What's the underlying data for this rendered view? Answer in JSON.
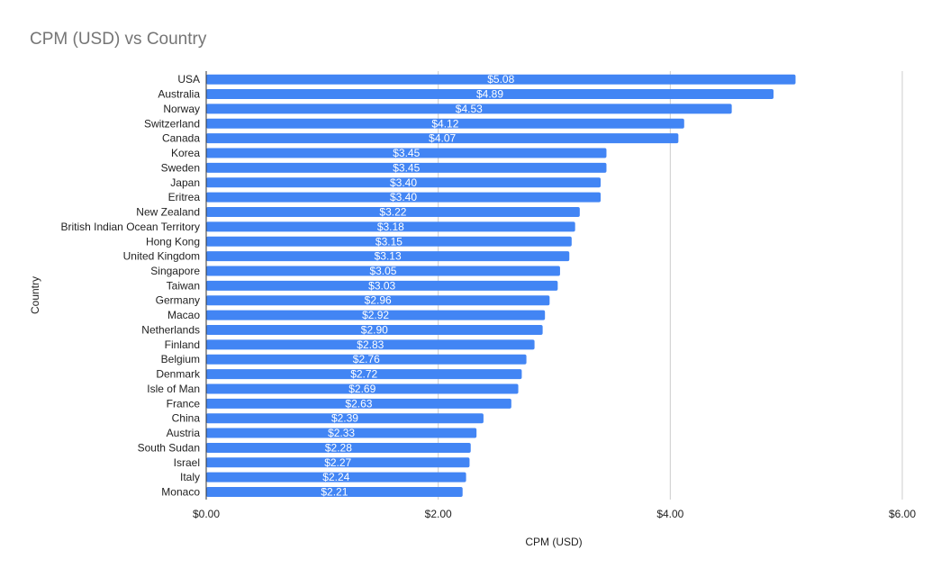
{
  "chart_data": {
    "type": "bar",
    "orientation": "horizontal",
    "title": "CPM (USD) vs Country",
    "xlabel": "CPM (USD)",
    "ylabel": "Country",
    "xlim": [
      0,
      6
    ],
    "x_ticks": [
      0,
      2,
      4,
      6
    ],
    "x_tick_labels": [
      "$0.00",
      "$2.00",
      "$4.00",
      "$6.00"
    ],
    "grid": "vertical",
    "legend": "none",
    "bar_color": "#4285f4",
    "categories": [
      "USA",
      "Australia",
      "Norway",
      "Switzerland",
      "Canada",
      "Korea",
      "Sweden",
      "Japan",
      "Eritrea",
      "New Zealand",
      "British Indian Ocean Territory",
      "Hong Kong",
      "United Kingdom",
      "Singapore",
      "Taiwan",
      "Germany",
      "Macao",
      "Netherlands",
      "Finland",
      "Belgium",
      "Denmark",
      "Isle of Man",
      "France",
      "China",
      "Austria",
      "South Sudan",
      "Israel",
      "Italy",
      "Monaco"
    ],
    "values": [
      5.08,
      4.89,
      4.53,
      4.12,
      4.07,
      3.45,
      3.45,
      3.4,
      3.4,
      3.22,
      3.18,
      3.15,
      3.13,
      3.05,
      3.03,
      2.96,
      2.92,
      2.9,
      2.83,
      2.76,
      2.72,
      2.69,
      2.63,
      2.39,
      2.33,
      2.28,
      2.27,
      2.24,
      2.21
    ],
    "data_labels": [
      "$5.08",
      "$4.89",
      "$4.53",
      "$4.12",
      "$4.07",
      "$3.45",
      "$3.45",
      "$3.40",
      "$3.40",
      "$3.22",
      "$3.18",
      "$3.15",
      "$3.13",
      "$3.05",
      "$3.03",
      "$2.96",
      "$2.92",
      "$2.90",
      "$2.83",
      "$2.76",
      "$2.72",
      "$2.69",
      "$2.63",
      "$2.39",
      "$2.33",
      "$2.28",
      "$2.27",
      "$2.24",
      "$2.21"
    ]
  }
}
